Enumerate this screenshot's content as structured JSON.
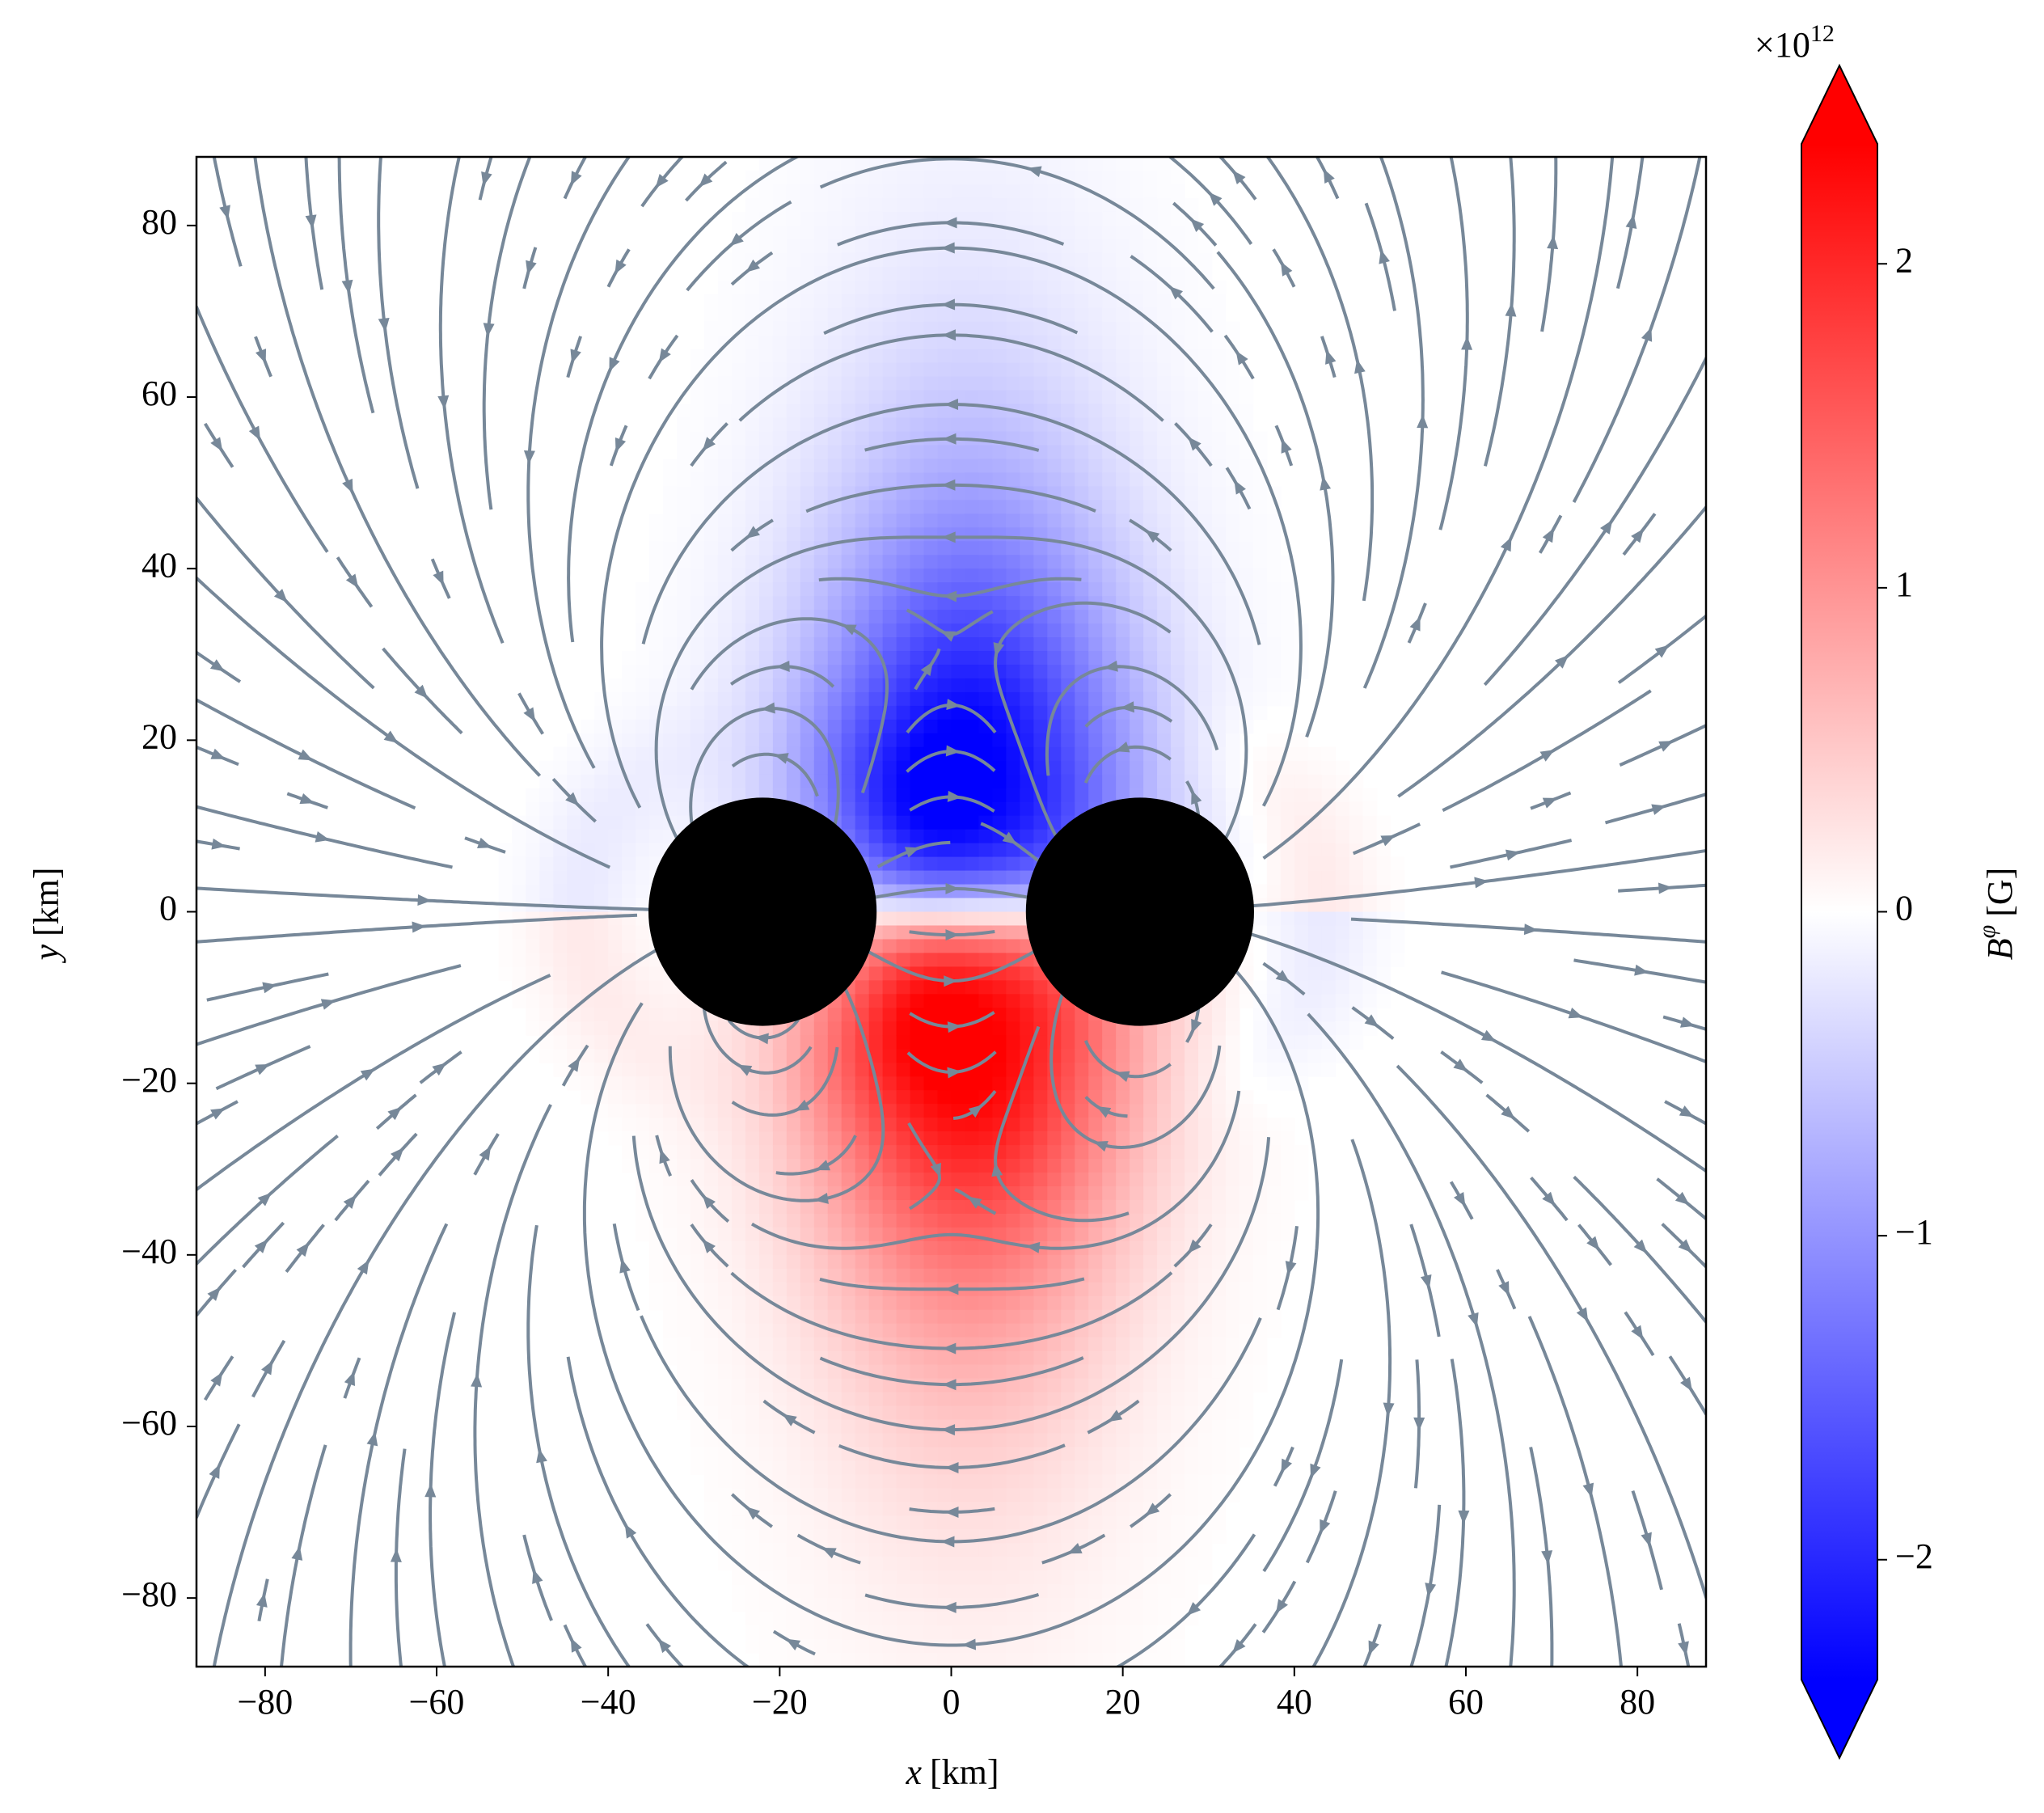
{
  "chart_data": {
    "type": "streamplot",
    "xlabel": {
      "symbol": "x",
      "unit": "[km]"
    },
    "ylabel": {
      "symbol": "y",
      "unit": "[km]"
    },
    "xlim": [
      -88,
      88
    ],
    "ylim": [
      -88,
      88
    ],
    "xticks": [
      {
        "value": -80,
        "label": "−80"
      },
      {
        "value": -60,
        "label": "−60"
      },
      {
        "value": -40,
        "label": "−40"
      },
      {
        "value": -20,
        "label": "−20"
      },
      0,
      20,
      40,
      60,
      80
    ],
    "yticks": [
      {
        "value": -80,
        "label": "−80"
      },
      {
        "value": -60,
        "label": "−60"
      },
      {
        "value": -40,
        "label": "−40"
      },
      {
        "value": -20,
        "label": "−20"
      },
      0,
      20,
      40,
      60,
      80
    ],
    "stars": [
      {
        "x": -22,
        "y": 0,
        "radius": 13.3,
        "color": "#000000"
      },
      {
        "x": 22,
        "y": 0,
        "radius": 13.3,
        "color": "#000000"
      }
    ],
    "streamline_color": "#778899",
    "colorbar": {
      "label": {
        "symbol": "B",
        "superscript": "φ",
        "unit": "[G]"
      },
      "offset": {
        "base": "×10",
        "exponent": "12"
      },
      "clim": [
        -2.37,
        2.37
      ],
      "ticks": [
        {
          "value": -2,
          "label": "−2"
        },
        {
          "value": -1,
          "label": "−1"
        },
        0,
        1,
        2
      ],
      "colors": [
        "#0000ff",
        "#ffffff",
        "#ff0000"
      ],
      "extend": "both"
    }
  }
}
